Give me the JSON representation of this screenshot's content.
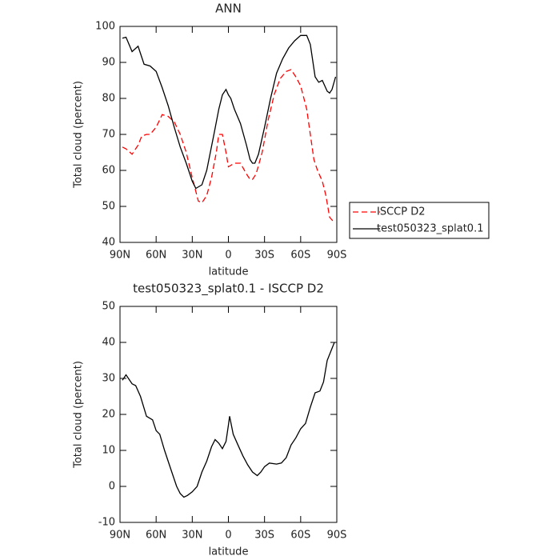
{
  "chart_data": [
    {
      "type": "line",
      "title": "ANN",
      "xlabel": "latitude",
      "ylabel": "Total cloud (percent)",
      "xlim": [
        90,
        -90
      ],
      "ylim": [
        40,
        100
      ],
      "xticks": [
        {
          "value": 90,
          "label": "90N"
        },
        {
          "value": 60,
          "label": "60N"
        },
        {
          "value": 30,
          "label": "30N"
        },
        0,
        {
          "value": -30,
          "label": "30S"
        },
        {
          "value": -60,
          "label": "60S"
        },
        {
          "value": -90,
          "label": "90S"
        }
      ],
      "yticks": [
        40,
        50,
        60,
        70,
        80,
        90,
        100
      ],
      "legend": "right",
      "series": [
        {
          "name": "ISCCP D2",
          "color": "#ff0000",
          "dashed": true,
          "x": [
            88,
            85,
            80,
            75,
            72,
            68,
            65,
            60,
            55,
            50,
            45,
            40,
            35,
            30,
            25,
            22,
            18,
            14,
            10,
            8,
            5,
            2,
            0,
            -5,
            -10,
            -15,
            -18,
            -20,
            -23,
            -28,
            -33,
            -38,
            -43,
            -48,
            -52,
            -56,
            -60,
            -65,
            -68,
            -71,
            -74,
            -78,
            -81,
            -84,
            -88
          ],
          "values": [
            66.5,
            66,
            64.5,
            67,
            69.5,
            70,
            70,
            72,
            75.5,
            75,
            73.5,
            70,
            65,
            58,
            51.5,
            51,
            53,
            58,
            65,
            70,
            70,
            65,
            61,
            62,
            62,
            59,
            57.5,
            57.5,
            59,
            65,
            74,
            81,
            85.5,
            87.5,
            88,
            86,
            83.5,
            77,
            70,
            63,
            60,
            57,
            53,
            47,
            45.5
          ]
        },
        {
          "name": "test050323_splat0.1",
          "color": "#000000",
          "dashed": false,
          "x": [
            88,
            85,
            80,
            75,
            70,
            65,
            60,
            55,
            50,
            45,
            40,
            35,
            30,
            27,
            22,
            18,
            12,
            8,
            5,
            2,
            0,
            -2,
            -5,
            -10,
            -15,
            -18,
            -20,
            -22,
            -25,
            -30,
            -35,
            -40,
            -45,
            -50,
            -55,
            -60,
            -65,
            -68,
            -72,
            -75,
            -78,
            -82,
            -84,
            -86,
            -89
          ],
          "values": [
            96.7,
            97,
            93,
            94.5,
            89.5,
            89,
            87.5,
            83,
            78,
            72,
            66.5,
            62,
            57,
            55,
            56,
            60,
            70,
            77,
            81,
            82.5,
            81,
            80,
            77,
            73,
            67,
            63,
            62,
            62,
            64.5,
            72,
            80,
            87,
            91,
            94,
            96,
            97.5,
            97.5,
            95,
            86,
            84.5,
            85,
            82,
            81.5,
            82.5,
            86
          ]
        }
      ]
    },
    {
      "type": "line",
      "title": "test050323_splat0.1 - ISCCP D2",
      "xlabel": "latitude",
      "ylabel": "Total cloud (percent)",
      "xlim": [
        90,
        -90
      ],
      "ylim": [
        -10,
        50
      ],
      "xticks": [
        {
          "value": 90,
          "label": "90N"
        },
        {
          "value": 60,
          "label": "60N"
        },
        {
          "value": 30,
          "label": "30N"
        },
        0,
        {
          "value": -30,
          "label": "30S"
        },
        {
          "value": -60,
          "label": "60S"
        },
        {
          "value": -90,
          "label": "90S"
        }
      ],
      "yticks": [
        -10,
        0,
        10,
        20,
        30,
        40,
        50
      ],
      "series": [
        {
          "color": "#000000",
          "dashed": false,
          "x": [
            88,
            85,
            80,
            77,
            73,
            68,
            63,
            60,
            57,
            53,
            48,
            43,
            40,
            37,
            34,
            30,
            26,
            22,
            18,
            14,
            11,
            8,
            5,
            2,
            0,
            -1,
            -4,
            -8,
            -12,
            -16,
            -20,
            -24,
            -27,
            -30,
            -34,
            -40,
            -44,
            -48,
            -52,
            -56,
            -60,
            -64,
            -68,
            -72,
            -76,
            -79,
            -82,
            -88
          ],
          "values": [
            29.5,
            31,
            28.5,
            28,
            25,
            19.5,
            18.5,
            15.5,
            14.5,
            10,
            5,
            0,
            -2,
            -3,
            -2.5,
            -1.5,
            0,
            4,
            7,
            11,
            13,
            12,
            10.5,
            12.5,
            17,
            19.5,
            14.5,
            11.5,
            8.5,
            6,
            4,
            3,
            4,
            5.5,
            6.5,
            6.2,
            6.5,
            8,
            11.5,
            13.5,
            16,
            17.5,
            22,
            26,
            26.5,
            29,
            35,
            40
          ]
        }
      ]
    }
  ]
}
